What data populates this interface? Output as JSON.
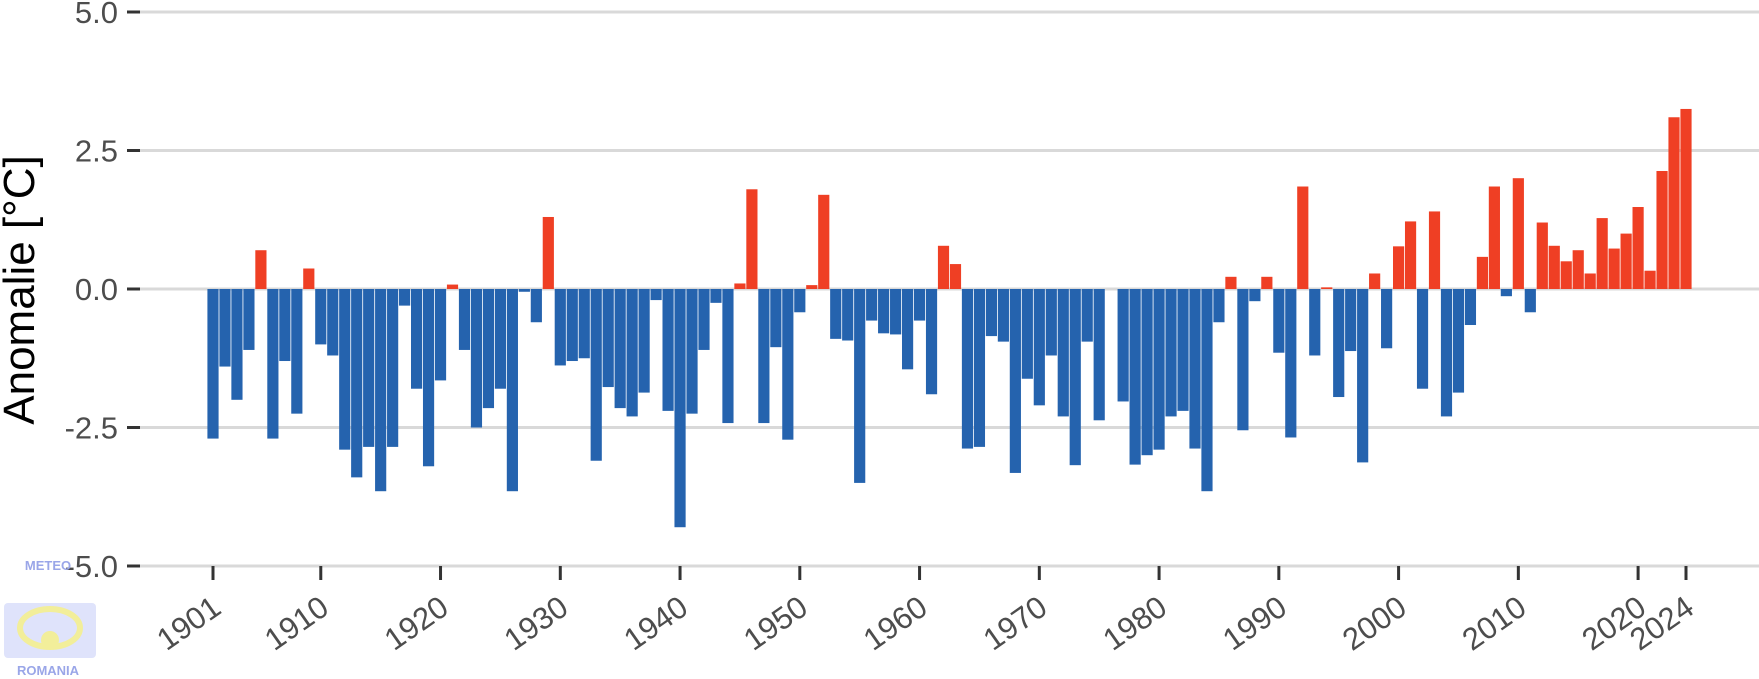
{
  "chart_data": {
    "type": "bar",
    "title": "",
    "xlabel": "",
    "ylabel": "Anomalie [°C]",
    "ylim": [
      -5,
      5
    ],
    "y_ticks": [
      5,
      2.5,
      0,
      -2.5,
      -5
    ],
    "y_tick_labels": [
      "5.0",
      "2.5",
      "0.0",
      "-2.5",
      "-5.0"
    ],
    "x_ticks": [
      1901,
      1910,
      1920,
      1930,
      1940,
      1950,
      1960,
      1970,
      1980,
      1990,
      2000,
      2010,
      2020,
      2024
    ],
    "x_tick_labels": [
      "1901",
      "1910",
      "1920",
      "1930",
      "1940",
      "1950",
      "1960",
      "1970",
      "1980",
      "1990",
      "2000",
      "2010",
      "2020",
      "2024"
    ],
    "grid": "horizontal",
    "legend": "none",
    "colors": {
      "positive": "#ef3f24",
      "negative": "#2563ae",
      "grid": "#d9d9d9",
      "tick": "#333333"
    },
    "x": [
      1901,
      1902,
      1903,
      1904,
      1905,
      1906,
      1907,
      1908,
      1909,
      1910,
      1911,
      1912,
      1913,
      1914,
      1915,
      1916,
      1917,
      1918,
      1919,
      1920,
      1921,
      1922,
      1923,
      1924,
      1925,
      1926,
      1927,
      1928,
      1929,
      1930,
      1931,
      1932,
      1933,
      1934,
      1935,
      1936,
      1937,
      1938,
      1939,
      1940,
      1941,
      1942,
      1943,
      1944,
      1945,
      1946,
      1947,
      1948,
      1949,
      1950,
      1951,
      1952,
      1953,
      1954,
      1955,
      1956,
      1957,
      1958,
      1959,
      1960,
      1961,
      1962,
      1963,
      1964,
      1965,
      1966,
      1967,
      1968,
      1969,
      1970,
      1971,
      1972,
      1973,
      1974,
      1975,
      1976,
      1977,
      1978,
      1979,
      1980,
      1981,
      1982,
      1983,
      1984,
      1985,
      1986,
      1987,
      1988,
      1989,
      1990,
      1991,
      1992,
      1993,
      1994,
      1995,
      1996,
      1997,
      1998,
      1999,
      2000,
      2001,
      2002,
      2003,
      2004,
      2005,
      2006,
      2007,
      2008,
      2009,
      2010,
      2011,
      2012,
      2013,
      2014,
      2015,
      2016,
      2017,
      2018,
      2019,
      2020,
      2021,
      2022,
      2023,
      2024
    ],
    "values": [
      -2.7,
      -1.4,
      -2.0,
      -1.1,
      0.7,
      -2.7,
      -1.3,
      -2.25,
      0.37,
      -1.0,
      -1.2,
      -2.9,
      -3.4,
      -2.85,
      -3.65,
      -2.85,
      -0.3,
      -1.8,
      -3.2,
      -1.65,
      0.08,
      -1.1,
      -2.5,
      -2.15,
      -1.8,
      -3.65,
      -0.05,
      -0.6,
      1.3,
      -1.38,
      -1.3,
      -1.25,
      -3.1,
      -1.77,
      -2.15,
      -2.3,
      -1.87,
      -0.2,
      -2.2,
      -4.3,
      -2.25,
      -1.1,
      -0.25,
      -2.42,
      0.1,
      1.8,
      -2.42,
      -1.05,
      -2.72,
      -0.42,
      0.07,
      1.7,
      -0.9,
      -0.93,
      -3.5,
      -0.57,
      -0.8,
      -0.82,
      -1.45,
      -0.57,
      -1.9,
      0.78,
      0.45,
      -2.88,
      -2.85,
      -0.85,
      -0.95,
      -3.32,
      -1.62,
      -2.1,
      -1.2,
      -2.3,
      -3.18,
      -0.95,
      -2.37,
      0.0,
      -2.03,
      -3.17,
      -3.0,
      -2.9,
      -2.3,
      -2.2,
      -2.88,
      -3.65,
      -0.6,
      0.22,
      -2.55,
      -0.22,
      0.22,
      -1.15,
      -2.68,
      1.85,
      -1.2,
      0.03,
      -1.95,
      -1.12,
      -3.13,
      0.28,
      -1.07,
      0.77,
      1.22,
      -1.8,
      1.4,
      -2.3,
      -1.87,
      -0.65,
      0.58,
      1.85,
      -0.13,
      2.0,
      -0.42,
      1.2,
      0.78,
      0.5,
      0.7,
      0.28,
      1.28,
      0.73,
      1.0,
      1.48,
      0.33,
      2.13,
      3.1,
      3.25
    ]
  }
}
